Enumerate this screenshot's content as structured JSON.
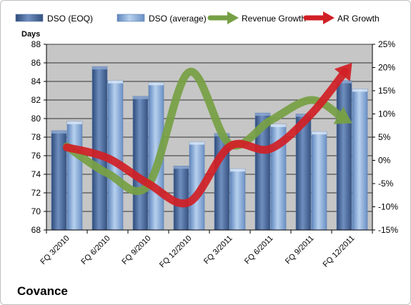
{
  "chart_data": {
    "type": "bar",
    "title": "",
    "company": "Covance",
    "categories": [
      "FQ 3/2010",
      "FQ 6/2010",
      "FQ 9/2010",
      "FQ 12/2010",
      "FQ 3/2011",
      "FQ 6/2011",
      "FQ 9/2011",
      "FQ 12/2011"
    ],
    "y_left": {
      "label": "Days",
      "min": 68,
      "max": 88,
      "step": 2
    },
    "y_right": {
      "min": -15,
      "max": 25,
      "step": 5,
      "format": "percent"
    },
    "series": [
      {
        "name": "DSO (EOQ)",
        "kind": "bar",
        "axis": "left",
        "color": "#4f6fa0",
        "values": [
          78.7,
          85.6,
          82.4,
          74.9,
          78.4,
          80.6,
          80.5,
          84.1
        ]
      },
      {
        "name": "DSO (average)",
        "kind": "bar",
        "axis": "left",
        "color": "#8fb0d8",
        "values": [
          79.7,
          84.1,
          83.9,
          77.5,
          74.6,
          79.4,
          78.6,
          83.2
        ]
      },
      {
        "name": "Revenue Growth",
        "kind": "line",
        "axis": "right",
        "color": "#77a045",
        "values": [
          3.0,
          -2.8,
          -5.3,
          19.0,
          3.5,
          8.6,
          13.0,
          8.0
        ]
      },
      {
        "name": "AR Growth",
        "kind": "line",
        "axis": "right",
        "color": "#d12026",
        "values": [
          2.8,
          0.5,
          -5.0,
          -9.0,
          3.0,
          2.5,
          10.0,
          21.0
        ]
      }
    ],
    "legend_position": "top",
    "grid": true
  },
  "colors": {
    "plot_bg": "#c6c6c6",
    "grid": "#000000"
  }
}
